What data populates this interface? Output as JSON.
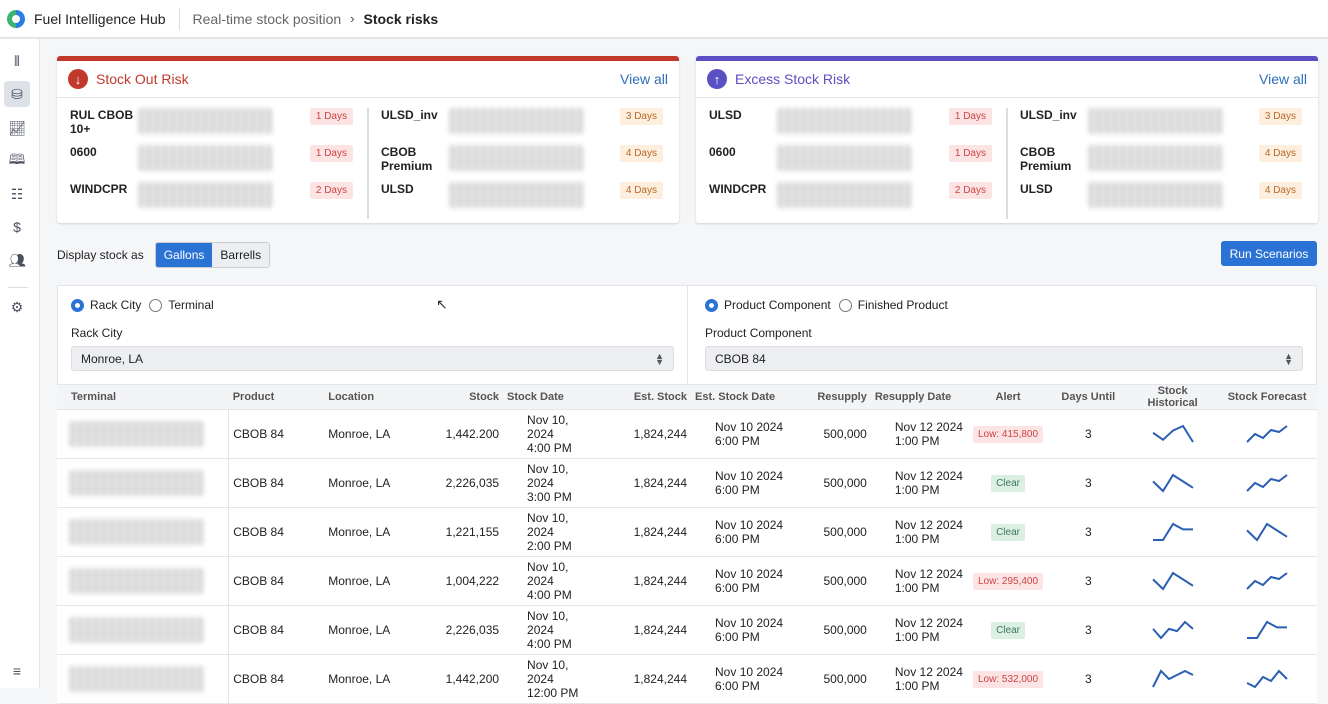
{
  "header": {
    "app_title": "Fuel Intelligence Hub",
    "breadcrumb": [
      "Real-time stock position",
      "Stock risks"
    ]
  },
  "sidebar": {
    "icons": [
      "split-view-icon",
      "database-icon",
      "chart-icon",
      "book-icon",
      "grid-icon",
      "dollar-icon",
      "users-icon",
      "gear-icon",
      "collapse-menu-icon"
    ],
    "active": 1
  },
  "stock_out": {
    "title": "Stock Out Risk",
    "view_all": "View all",
    "accent": "#c0392b",
    "left": [
      {
        "name": "RUL CBOB 10+",
        "days": "1 Days"
      },
      {
        "name": "0600",
        "days": "1 Days"
      },
      {
        "name": "WINDCPR",
        "days": "2 Days"
      }
    ],
    "right": [
      {
        "name": "ULSD_inv",
        "days": "3 Days"
      },
      {
        "name": "CBOB Premium",
        "days": "4 Days"
      },
      {
        "name": "ULSD",
        "days": "4 Days"
      }
    ]
  },
  "excess": {
    "title": "Excess Stock Risk",
    "view_all": "View all",
    "accent": "#5b4fc4",
    "left": [
      {
        "name": "ULSD",
        "days": "1 Days"
      },
      {
        "name": "0600",
        "days": "1 Days"
      },
      {
        "name": "WINDCPR",
        "days": "2 Days"
      }
    ],
    "right": [
      {
        "name": "ULSD_inv",
        "days": "3 Days"
      },
      {
        "name": "CBOB Premium",
        "days": "4 Days"
      },
      {
        "name": "ULSD",
        "days": "4 Days"
      }
    ]
  },
  "display": {
    "label": "Display stock as",
    "options": [
      "Gallons",
      "Barrells"
    ],
    "selected": 0,
    "run_label": "Run Scenarios"
  },
  "filters": {
    "location_radios": [
      "Rack City",
      "Terminal"
    ],
    "location_label": "Rack City",
    "location_value": "Monroe, LA",
    "product_radios": [
      "Product Component",
      "Finished Product"
    ],
    "product_label": "Product Component",
    "product_value": "CBOB 84"
  },
  "table": {
    "columns": [
      "Terminal",
      "Product",
      "Location",
      "Stock",
      "Stock Date",
      "Est. Stock",
      "Est. Stock Date",
      "Resupply",
      "Resupply Date",
      "Alert",
      "Days Until",
      "Stock Historical",
      "Stock Forecast"
    ],
    "rows": [
      {
        "product": "CBOB 84",
        "location": "Monroe, LA",
        "stock": "1,442.200",
        "stock_date": [
          "Nov 10, 2024",
          "4:00 PM"
        ],
        "est_stock": "1,824,244",
        "est_date": [
          "Nov 10 2024",
          "6:00 PM"
        ],
        "resupply": "500,000",
        "resupply_date": [
          "Nov 12 2024",
          "1:00 PM"
        ],
        "alert": "Low: 415,800",
        "alert_type": "low",
        "days": "3",
        "hist": [
          2,
          0.5,
          2.5,
          3.5,
          0
        ],
        "fc": [
          0,
          2,
          1,
          3,
          2.5,
          4
        ]
      },
      {
        "product": "CBOB 84",
        "location": "Monroe, LA",
        "stock": "2,226,035",
        "stock_date": [
          "Nov 10, 2024",
          "3:00 PM"
        ],
        "est_stock": "1,824,244",
        "est_date": [
          "Nov 10 2024",
          "6:00 PM"
        ],
        "resupply": "500,000",
        "resupply_date": [
          "Nov 12 2024",
          "1:00 PM"
        ],
        "alert": "Clear",
        "alert_type": "clear",
        "days": "3",
        "hist": [
          2,
          0.5,
          3,
          2,
          1
        ],
        "fc": [
          0,
          2,
          1,
          3,
          2.5,
          4
        ]
      },
      {
        "product": "CBOB 84",
        "location": "Monroe, LA",
        "stock": "1,221,155",
        "stock_date": [
          "Nov 10, 2024",
          "2:00 PM"
        ],
        "est_stock": "1,824,244",
        "est_date": [
          "Nov 10 2024",
          "6:00 PM"
        ],
        "resupply": "500,000",
        "resupply_date": [
          "Nov 12 2024",
          "1:00 PM"
        ],
        "alert": "Clear",
        "alert_type": "clear",
        "days": "3",
        "hist": [
          0,
          0,
          3,
          2,
          2
        ],
        "fc": [
          2,
          0.5,
          3,
          2,
          1
        ]
      },
      {
        "product": "CBOB 84",
        "location": "Monroe, LA",
        "stock": "1,004,222",
        "stock_date": [
          "Nov 10, 2024",
          "4:00 PM"
        ],
        "est_stock": "1,824,244",
        "est_date": [
          "Nov 10 2024",
          "6:00 PM"
        ],
        "resupply": "500,000",
        "resupply_date": [
          "Nov 12 2024",
          "1:00 PM"
        ],
        "alert": "Low: 295,400",
        "alert_type": "low",
        "days": "3",
        "hist": [
          2,
          0.5,
          3,
          2,
          1
        ],
        "fc": [
          0,
          2,
          1,
          3,
          2.5,
          4
        ]
      },
      {
        "product": "CBOB 84",
        "location": "Monroe, LA",
        "stock": "2,226,035",
        "stock_date": [
          "Nov 10, 2024",
          "4:00 PM"
        ],
        "est_stock": "1,824,244",
        "est_date": [
          "Nov 10 2024",
          "6:00 PM"
        ],
        "resupply": "500,000",
        "resupply_date": [
          "Nov 12 2024",
          "1:00 PM"
        ],
        "alert": "Clear",
        "alert_type": "clear",
        "days": "3",
        "hist": [
          2,
          0,
          2,
          1.5,
          3.5,
          2
        ],
        "fc": [
          0,
          0,
          3,
          2,
          2
        ]
      },
      {
        "product": "CBOB 84",
        "location": "Monroe, LA",
        "stock": "1,442,200",
        "stock_date": [
          "Nov 10, 2024",
          "12:00 PM"
        ],
        "est_stock": "1,824,244",
        "est_date": [
          "Nov 10 2024",
          "6:00 PM"
        ],
        "resupply": "500,000",
        "resupply_date": [
          "Nov 12 2024",
          "1:00 PM"
        ],
        "alert": "Low: 532,000",
        "alert_type": "low",
        "days": "3",
        "hist": [
          1,
          3,
          2,
          2.5,
          3,
          2.5
        ],
        "fc": [
          1,
          0,
          2.5,
          1.5,
          4,
          2
        ]
      }
    ]
  }
}
